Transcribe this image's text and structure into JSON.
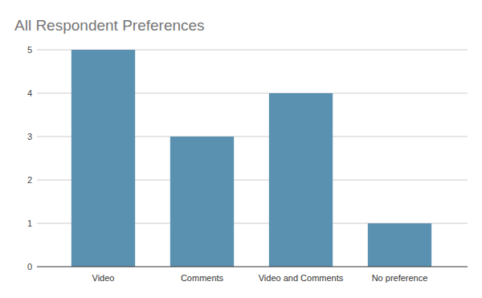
{
  "chart_data": {
    "type": "bar",
    "title": "All Respondent Preferences",
    "categories": [
      "Video",
      "Comments",
      "Video and Comments",
      "No preference"
    ],
    "values": [
      5,
      3,
      4,
      1
    ],
    "color": "#5a91b0",
    "ylim": [
      0,
      5
    ],
    "yticks": [
      0,
      1,
      2,
      3,
      4,
      5
    ],
    "grid": true
  }
}
